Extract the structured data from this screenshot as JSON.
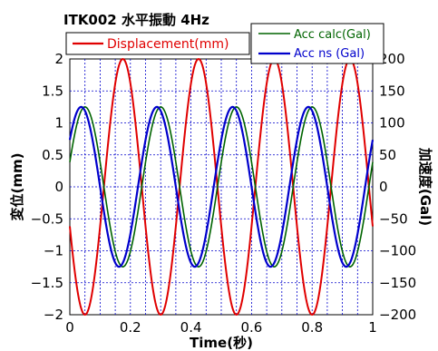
{
  "chart_data": {
    "type": "line",
    "title": "ITK002 水平振動 4Hz",
    "xlabel": "Time(秒)",
    "ylabel_left": "変位(mm)",
    "ylabel_right": "加速度(Gal)",
    "xlim": [
      0,
      1
    ],
    "ylim_left": [
      -2,
      2
    ],
    "ylim_right": [
      -200,
      200
    ],
    "x_ticks": [
      "0",
      "0.2",
      "0.4",
      "0.6",
      "0.8",
      "1"
    ],
    "y_left_ticks": [
      "2",
      "1.5",
      "1",
      "0.5",
      "0",
      "−0.5",
      "−1",
      "−1.5",
      "−2"
    ],
    "y_right_ticks": [
      "200",
      "150",
      "100",
      "50",
      "0",
      "−50",
      "−100",
      "−150",
      "−200"
    ],
    "grid": true,
    "series": [
      {
        "name": "Displacement(mm)",
        "axis": "left",
        "color": "#e00000",
        "model": {
          "amplitude": 2.0,
          "frequency_hz": 4.0,
          "phase_deg": 198
        }
      },
      {
        "name": "Acc calc(Gal)",
        "axis": "right",
        "color": "#006400",
        "model": {
          "amplitude": 125,
          "frequency_hz": 4.0,
          "phase_deg": 18
        }
      },
      {
        "name": "Acc ns (Gal)",
        "axis": "right",
        "color": "#0000cc",
        "model": {
          "amplitude": 125,
          "frequency_hz": 4.0,
          "phase_deg": 36
        }
      }
    ],
    "legend": [
      {
        "label": "Displacement(mm)",
        "color": "#e00000"
      },
      {
        "label": "Acc calc(Gal)",
        "color": "#006400"
      },
      {
        "label": "Acc ns (Gal)",
        "color": "#0000cc"
      }
    ]
  }
}
